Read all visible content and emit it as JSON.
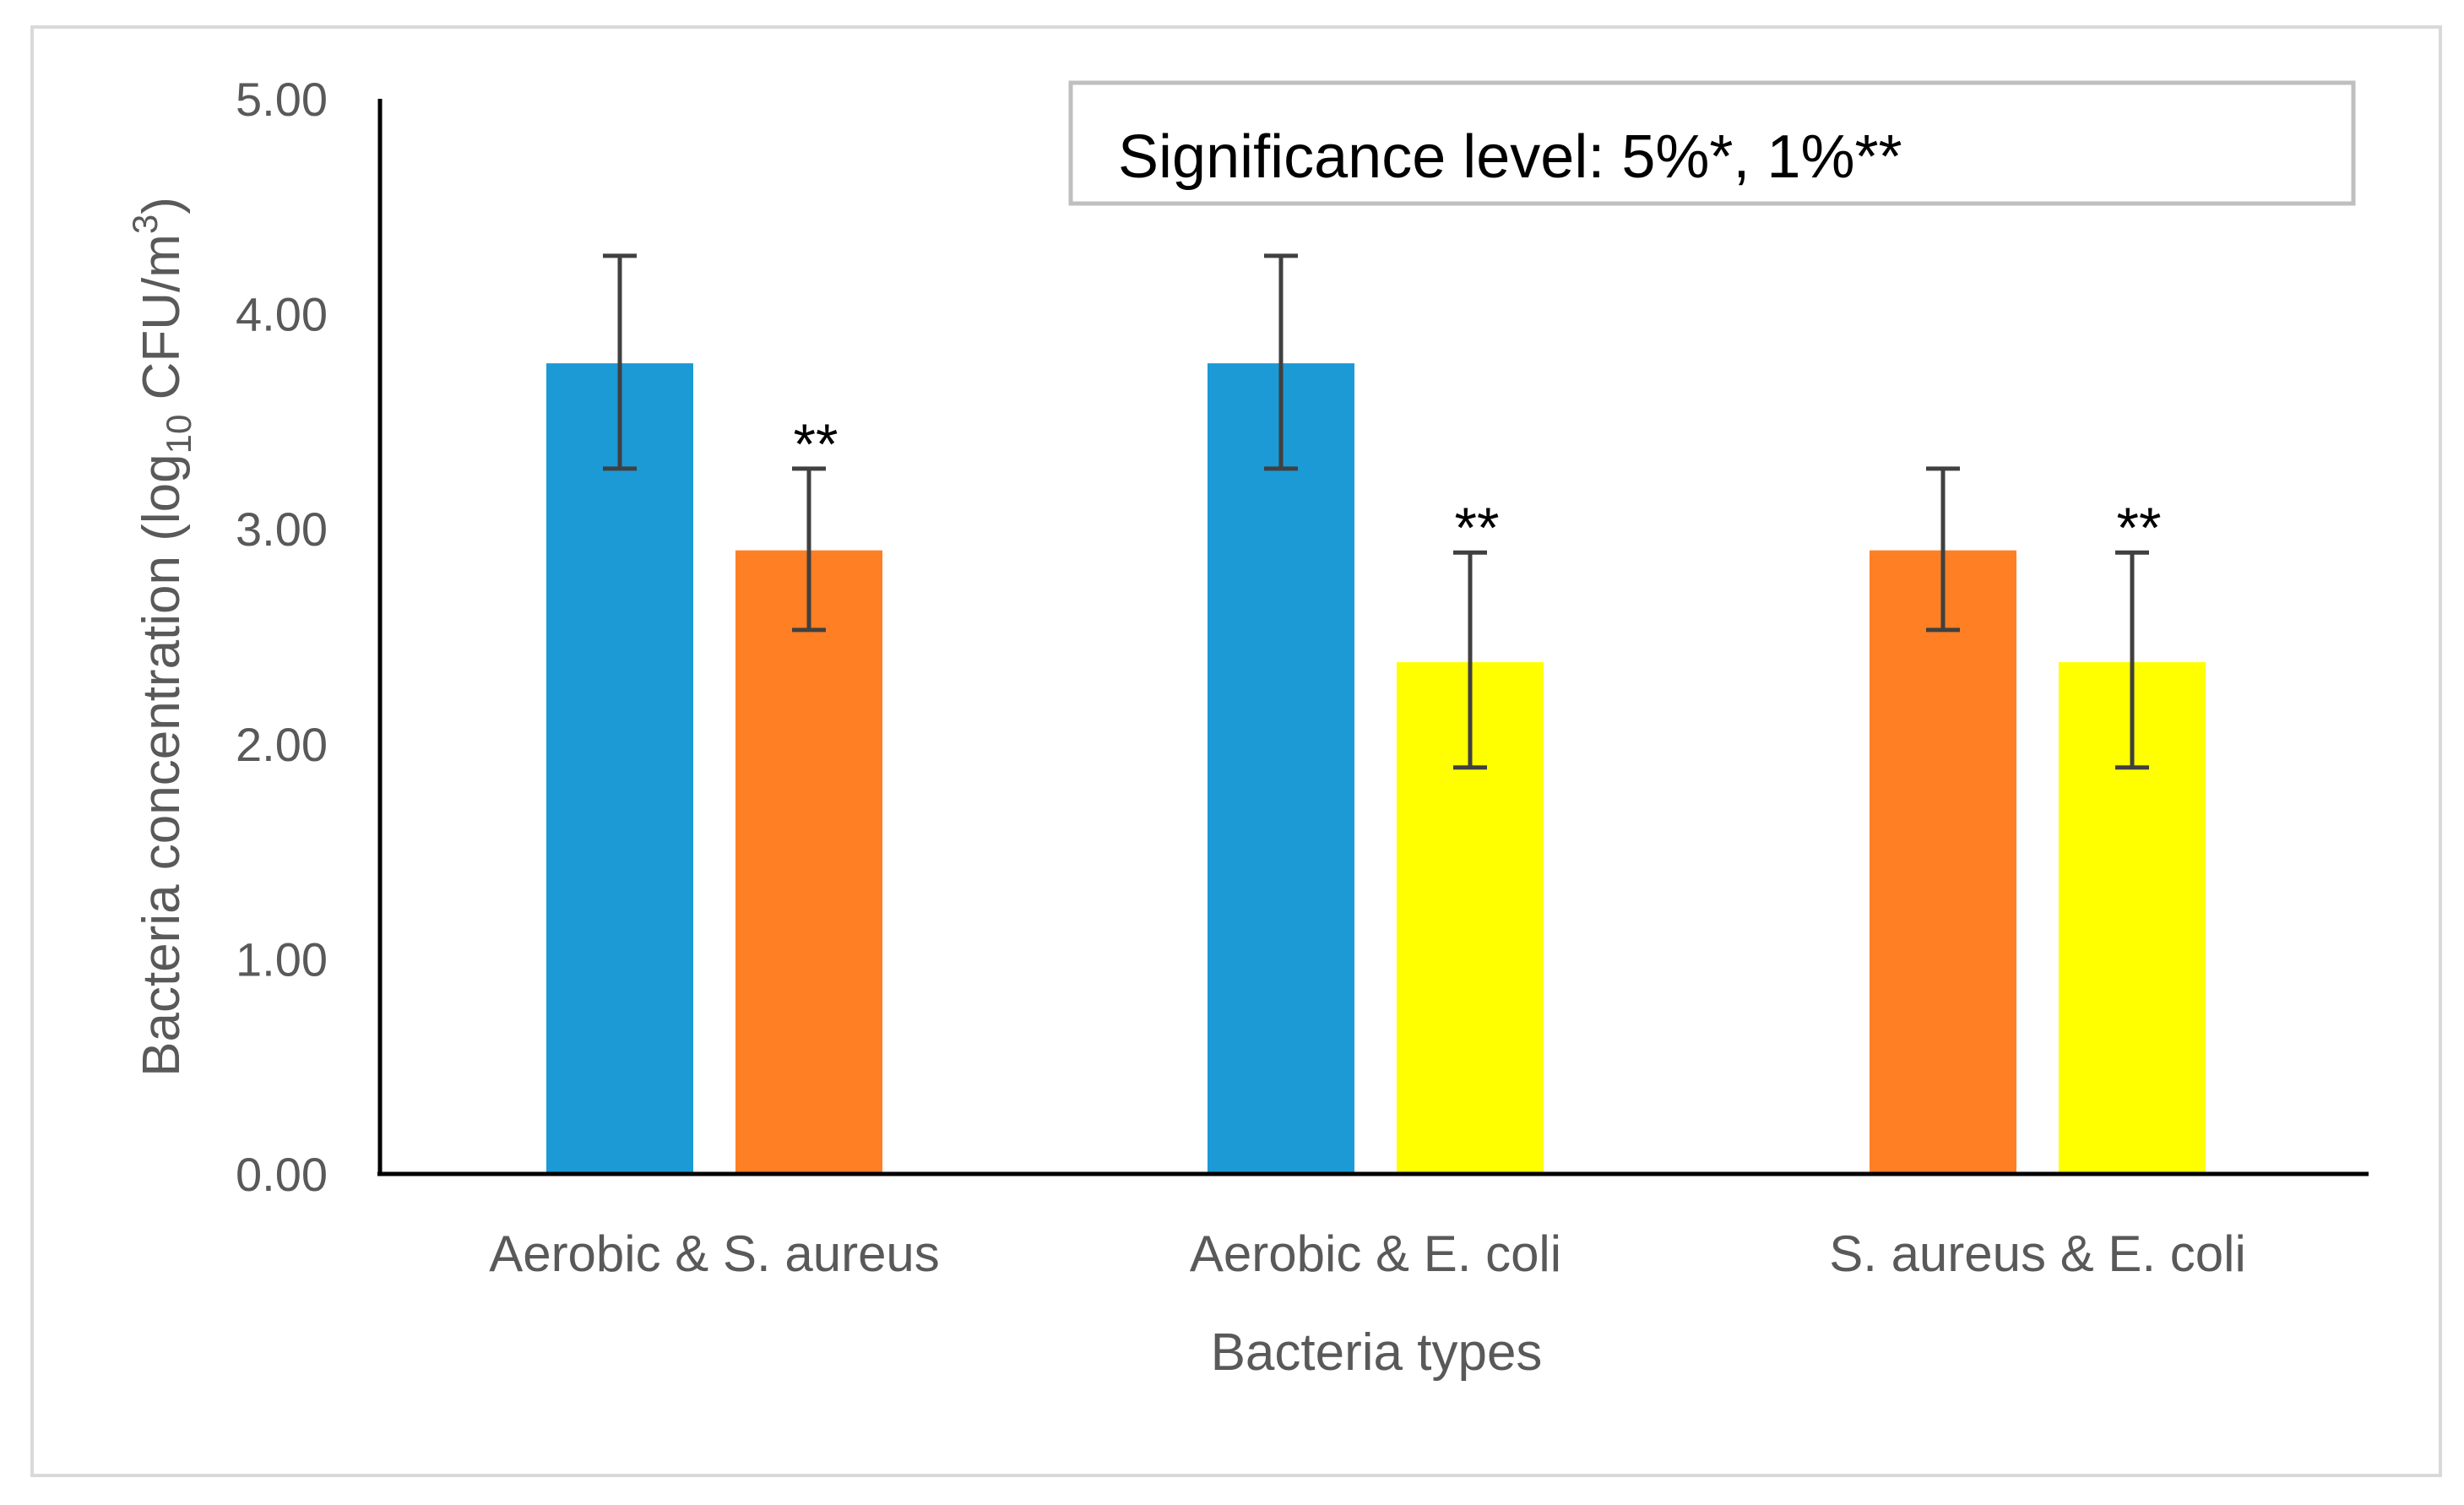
{
  "chart_data": {
    "type": "bar",
    "categories": [
      "Aerobic & S. aureus",
      "Aerobic & E. coli",
      "S. aureus & E. coli"
    ],
    "series_colors": {
      "Aerobic": "#1B9AD6",
      "S. aureus": "#FF7F24",
      "E. coli": "#FFFF00"
    },
    "bars": [
      {
        "group": 0,
        "slot": 0,
        "series": "Aerobic",
        "value": 3.77,
        "err_low": 3.28,
        "err_high": 4.27,
        "sig": ""
      },
      {
        "group": 0,
        "slot": 1,
        "series": "S. aureus",
        "value": 2.9,
        "err_low": 2.53,
        "err_high": 3.28,
        "sig": "**"
      },
      {
        "group": 1,
        "slot": 0,
        "series": "Aerobic",
        "value": 3.77,
        "err_low": 3.28,
        "err_high": 4.27,
        "sig": ""
      },
      {
        "group": 1,
        "slot": 1,
        "series": "E. coli",
        "value": 2.38,
        "err_low": 1.89,
        "err_high": 2.89,
        "sig": "**"
      },
      {
        "group": 2,
        "slot": 0,
        "series": "S. aureus",
        "value": 2.9,
        "err_low": 2.53,
        "err_high": 3.28,
        "sig": ""
      },
      {
        "group": 2,
        "slot": 1,
        "series": "E. coli",
        "value": 2.38,
        "err_low": 1.89,
        "err_high": 2.89,
        "sig": "**"
      }
    ],
    "yticks": [
      "0.00",
      "1.00",
      "2.00",
      "3.00",
      "4.00",
      "5.00"
    ],
    "ylim": [
      0,
      5
    ],
    "xlabel": "Bacteria types",
    "ylabel_main": "Bacteria concentration (log",
    "ylabel_sub": "10",
    "ylabel_mid": " CFU/m",
    "ylabel_sup": "3",
    "ylabel_end": ")",
    "annotation": "Significance level: 5%*, 1%**",
    "legend": "none",
    "grid": false
  }
}
